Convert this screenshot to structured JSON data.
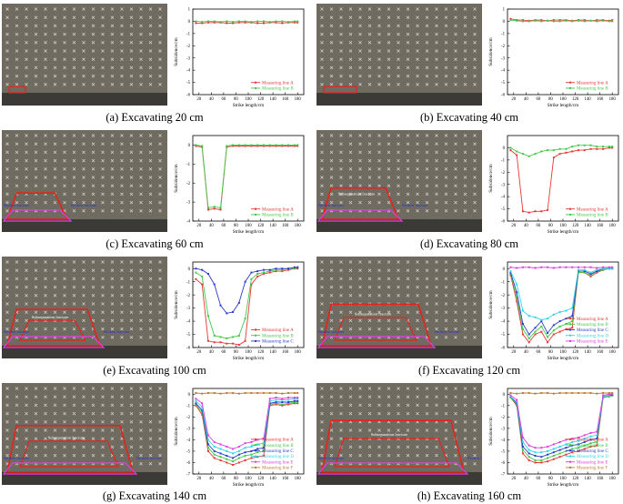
{
  "common": {
    "xlabel": "Strike length/cm",
    "ylabel": "Subsidence/cm",
    "x_ticks": [
      20,
      40,
      60,
      80,
      100,
      120,
      140,
      160,
      180
    ],
    "photo_label_broken": "Broken fracture",
    "photo_label_separation": "Subseparation fracture",
    "series_colors": {
      "Measuring line A": "#e53935",
      "Measuring line B": "#43c84a",
      "Measuring line C": "#2b3cc8",
      "Measuring line D": "#2fd6e6",
      "Measuring line E": "#e23ce0",
      "Measuring line F": "#c07a2e"
    }
  },
  "chart_data": [
    {
      "type": "line",
      "caption": "(a) Excavating 20 cm",
      "xlabel": "Strike length/cm",
      "ylabel": "Subsidence/cm",
      "ylim": [
        -6,
        1
      ],
      "y_ticks": [
        1,
        0,
        -1,
        -2,
        -3,
        -4,
        -5,
        -6
      ],
      "x": [
        15,
        25,
        35,
        45,
        55,
        65,
        75,
        85,
        95,
        105,
        115,
        125,
        135,
        145,
        155,
        165,
        175,
        180
      ],
      "series": [
        {
          "name": "Measuring line A",
          "values": [
            -0.15,
            -0.15,
            -0.1,
            -0.1,
            -0.1,
            -0.15,
            -0.15,
            -0.1,
            -0.1,
            -0.1,
            -0.15,
            -0.15,
            -0.1,
            -0.1,
            -0.15,
            -0.1,
            -0.1,
            -0.1
          ]
        },
        {
          "name": "Measuring line B",
          "values": [
            0,
            -0.05,
            0,
            0,
            -0.05,
            0,
            -0.05,
            0,
            0,
            -0.05,
            0,
            0,
            -0.05,
            0,
            0,
            -0.05,
            0,
            0
          ]
        }
      ]
    },
    {
      "type": "line",
      "caption": "(b) Excavating 40 cm",
      "xlabel": "Strike length/cm",
      "ylabel": "Subsidence/cm",
      "ylim": [
        -6,
        1
      ],
      "y_ticks": [
        1,
        0,
        -1,
        -2,
        -3,
        -4,
        -5,
        -6
      ],
      "x": [
        15,
        25,
        35,
        45,
        55,
        65,
        75,
        85,
        95,
        105,
        115,
        125,
        135,
        145,
        155,
        165,
        175,
        180
      ],
      "series": [
        {
          "name": "Measuring line A",
          "values": [
            0.2,
            0.1,
            0.1,
            0.05,
            0.1,
            0.1,
            0.05,
            0.1,
            0.1,
            0.1,
            0.05,
            0.1,
            0.1,
            0.05,
            0.1,
            0.1,
            0.05,
            0.1
          ]
        },
        {
          "name": "Measuring line B",
          "values": [
            0.1,
            0.05,
            0,
            0,
            0.05,
            0,
            0.05,
            0,
            0,
            0.05,
            0,
            0.05,
            0,
            0.05,
            0,
            0.05,
            0,
            0
          ]
        }
      ]
    },
    {
      "type": "line",
      "caption": "(c) Excavating 60 cm",
      "xlabel": "Strike length/cm",
      "ylabel": "Subsidence/cm",
      "ylim": [
        -4,
        0.5
      ],
      "y_ticks": [
        0,
        -1,
        -2,
        -3,
        -4
      ],
      "x": [
        15,
        25,
        35,
        45,
        55,
        65,
        75,
        85,
        95,
        105,
        115,
        125,
        135,
        145,
        155,
        165,
        175,
        180
      ],
      "series": [
        {
          "name": "Measuring line A",
          "values": [
            -0.05,
            -0.1,
            -3.4,
            -3.35,
            -3.4,
            -0.1,
            -0.05,
            -0.05,
            -0.05,
            -0.05,
            -0.05,
            -0.05,
            -0.05,
            -0.05,
            -0.05,
            -0.05,
            -0.05,
            -0.05
          ]
        },
        {
          "name": "Measuring line B",
          "values": [
            0,
            -0.05,
            -3.3,
            -3.25,
            -3.3,
            -0.05,
            0,
            0,
            0,
            0,
            0,
            0,
            0,
            0,
            0,
            0,
            0,
            0
          ]
        }
      ]
    },
    {
      "type": "line",
      "caption": "(d) Excavating 80 cm",
      "xlabel": "Strike length/cm",
      "ylabel": "Subsidence/cm",
      "ylim": [
        -6,
        1
      ],
      "y_ticks": [
        0,
        -1,
        -2,
        -3,
        -4,
        -5,
        -6
      ],
      "x": [
        15,
        25,
        35,
        45,
        55,
        65,
        75,
        85,
        95,
        105,
        115,
        125,
        135,
        145,
        155,
        165,
        175,
        180
      ],
      "series": [
        {
          "name": "Measuring line A",
          "values": [
            -0.2,
            -0.6,
            -5.2,
            -5.3,
            -5.2,
            -5.2,
            -5.1,
            -0.8,
            -0.5,
            -0.4,
            -0.3,
            -0.2,
            -0.2,
            -0.1,
            -0.1,
            -0.1,
            0,
            0
          ]
        },
        {
          "name": "Measuring line B",
          "values": [
            0,
            -0.3,
            -0.5,
            -0.7,
            -0.5,
            -0.3,
            -0.2,
            -0.2,
            -0.1,
            -0.1,
            0.1,
            0.2,
            0.2,
            0.2,
            0.1,
            0.1,
            0.1,
            0.1
          ]
        }
      ]
    },
    {
      "type": "line",
      "caption": "(e) Excavating 100 cm",
      "xlabel": "Strike length/cm",
      "ylabel": "Subsidence/cm",
      "ylim": [
        -6,
        0.5
      ],
      "y_ticks": [
        0,
        -1,
        -2,
        -3,
        -4,
        -5,
        -6
      ],
      "x": [
        15,
        25,
        35,
        45,
        55,
        65,
        75,
        85,
        95,
        105,
        115,
        125,
        135,
        145,
        155,
        165,
        175,
        180
      ],
      "series": [
        {
          "name": "Measuring line A",
          "values": [
            -0.8,
            -1.2,
            -5.5,
            -5.6,
            -5.6,
            -5.7,
            -5.7,
            -5.8,
            -5.5,
            -1.2,
            -0.6,
            -0.4,
            -0.3,
            -0.2,
            -0.2,
            -0.1,
            0,
            0
          ]
        },
        {
          "name": "Measuring line B",
          "values": [
            -0.3,
            -0.6,
            -3.6,
            -5.1,
            -5.2,
            -5.3,
            -5.2,
            -5.1,
            -3.8,
            -0.8,
            -0.4,
            -0.3,
            -0.2,
            -0.1,
            -0.1,
            0,
            0,
            0.1
          ]
        },
        {
          "name": "Measuring line C",
          "values": [
            0,
            -0.1,
            -0.4,
            -1.2,
            -2.8,
            -3.4,
            -3.3,
            -2.6,
            -1.0,
            -0.3,
            -0.2,
            -0.1,
            -0.1,
            0,
            0,
            0,
            0.1,
            0.1
          ]
        }
      ]
    },
    {
      "type": "line",
      "caption": "(f) Excavating 120 cm",
      "xlabel": "Strike length/cm",
      "ylabel": "Subsidence/cm",
      "ylim": [
        -6,
        0.5
      ],
      "y_ticks": [
        0,
        -1,
        -2,
        -3,
        -4,
        -5,
        -6
      ],
      "x": [
        15,
        25,
        35,
        45,
        55,
        65,
        75,
        85,
        95,
        105,
        115,
        125,
        135,
        145,
        155,
        165,
        175,
        180
      ],
      "series": [
        {
          "name": "Measuring line A",
          "values": [
            -0.5,
            -2.5,
            -5.0,
            -5.6,
            -5.0,
            -4.8,
            -5.6,
            -5.0,
            -4.8,
            -4.6,
            -4.5,
            -0.3,
            -0.3,
            -0.6,
            -0.3,
            -0.1,
            0,
            0
          ]
        },
        {
          "name": "Measuring line B",
          "values": [
            -0.4,
            -2.2,
            -4.6,
            -5.3,
            -4.8,
            -4.4,
            -5.2,
            -4.7,
            -4.4,
            -4.2,
            -4.0,
            -0.3,
            -0.3,
            -0.5,
            -0.2,
            -0.1,
            0,
            0
          ]
        },
        {
          "name": "Measuring line C",
          "values": [
            -0.3,
            -1.8,
            -4.2,
            -5.0,
            -4.5,
            -4.0,
            -4.9,
            -4.3,
            -4.0,
            -3.8,
            -3.6,
            -0.2,
            -0.2,
            -0.4,
            -0.2,
            0,
            0,
            0
          ]
        },
        {
          "name": "Measuring line D",
          "values": [
            -0.2,
            -1.2,
            -3.2,
            -3.6,
            -3.7,
            -3.9,
            -3.8,
            -3.5,
            -3.3,
            -3.2,
            -3.0,
            -0.1,
            -0.1,
            -0.3,
            -0.1,
            0,
            0,
            0
          ]
        },
        {
          "name": "Measuring line E",
          "values": [
            0.1,
            0.05,
            0.1,
            0.1,
            0.05,
            0.1,
            0.1,
            0.05,
            0.1,
            0.1,
            0.1,
            0.1,
            0.1,
            0.1,
            0.05,
            0.1,
            0.1,
            0.1
          ]
        }
      ]
    },
    {
      "type": "line",
      "caption": "(g) Excavating 140 cm",
      "xlabel": "Strike length/cm",
      "ylabel": "Subsidence/cm",
      "ylim": [
        -7,
        0.5
      ],
      "y_ticks": [
        0,
        -1,
        -2,
        -3,
        -4,
        -5,
        -6,
        -7
      ],
      "x": [
        15,
        25,
        35,
        45,
        55,
        65,
        75,
        85,
        95,
        105,
        115,
        125,
        135,
        145,
        155,
        165,
        175,
        180
      ],
      "series": [
        {
          "name": "Measuring line A",
          "values": [
            -1.0,
            -1.8,
            -5.0,
            -5.6,
            -5.8,
            -6.0,
            -6.2,
            -6.0,
            -5.8,
            -5.6,
            -5.5,
            -5.4,
            -1.0,
            -0.9,
            -1.0,
            -0.9,
            -0.8,
            -0.8
          ]
        },
        {
          "name": "Measuring line B",
          "values": [
            -0.9,
            -1.6,
            -4.7,
            -5.3,
            -5.5,
            -5.7,
            -5.9,
            -5.6,
            -5.4,
            -5.3,
            -5.1,
            -5.0,
            -0.9,
            -0.8,
            -0.9,
            -0.8,
            -0.7,
            -0.7
          ]
        },
        {
          "name": "Measuring line C",
          "values": [
            -0.8,
            -1.4,
            -4.4,
            -5.0,
            -5.2,
            -5.4,
            -5.6,
            -5.3,
            -5.1,
            -5.0,
            -4.8,
            -4.7,
            -0.8,
            -0.7,
            -0.7,
            -0.7,
            -0.6,
            -0.6
          ]
        },
        {
          "name": "Measuring line D",
          "values": [
            -0.6,
            -1.1,
            -4.0,
            -4.6,
            -4.8,
            -5.0,
            -5.2,
            -5.0,
            -4.7,
            -4.6,
            -4.4,
            -4.3,
            -0.6,
            -0.5,
            -0.5,
            -0.5,
            -0.4,
            -0.4
          ]
        },
        {
          "name": "Measuring line E",
          "values": [
            -0.4,
            -0.8,
            -3.6,
            -4.2,
            -4.4,
            -4.6,
            -4.8,
            -4.6,
            -4.3,
            -4.2,
            -4.0,
            -3.9,
            -0.4,
            -0.3,
            -0.4,
            -0.3,
            -0.3,
            -0.3
          ]
        },
        {
          "name": "Measuring line F",
          "values": [
            0.1,
            0.05,
            0.1,
            0.1,
            0.05,
            0.1,
            0.1,
            0.05,
            0.1,
            0.1,
            0.1,
            0.1,
            0.1,
            0.1,
            0.05,
            0.1,
            0.1,
            0.1
          ]
        }
      ]
    },
    {
      "type": "line",
      "caption": "(h) Excavating 160 cm",
      "xlabel": "Strike length/cm",
      "ylabel": "Subsidence/cm",
      "ylim": [
        -7,
        0.5
      ],
      "y_ticks": [
        0,
        -1,
        -2,
        -3,
        -4,
        -5,
        -6,
        -7
      ],
      "x": [
        15,
        25,
        35,
        45,
        55,
        65,
        75,
        85,
        95,
        105,
        115,
        125,
        135,
        145,
        155,
        165,
        175,
        180
      ],
      "series": [
        {
          "name": "Measuring line A",
          "values": [
            -0.3,
            -1.0,
            -5.2,
            -5.8,
            -6.0,
            -6.0,
            -5.9,
            -5.7,
            -5.5,
            -5.3,
            -5.1,
            -5.0,
            -4.8,
            -4.6,
            -4.5,
            -0.3,
            -0.2,
            -0.1
          ]
        },
        {
          "name": "Measuring line B",
          "values": [
            -0.3,
            -0.9,
            -4.9,
            -5.5,
            -5.8,
            -5.8,
            -5.6,
            -5.4,
            -5.2,
            -5.0,
            -4.8,
            -4.7,
            -4.5,
            -4.3,
            -4.2,
            -0.3,
            -0.2,
            -0.1
          ]
        },
        {
          "name": "Measuring line C",
          "values": [
            -0.2,
            -0.8,
            -4.6,
            -5.2,
            -5.4,
            -5.5,
            -5.3,
            -5.1,
            -4.9,
            -4.7,
            -4.5,
            -4.4,
            -4.2,
            -4.0,
            -3.9,
            -0.2,
            -0.1,
            -0.1
          ]
        },
        {
          "name": "Measuring line D",
          "values": [
            -0.2,
            -0.7,
            -4.2,
            -4.9,
            -5.1,
            -5.1,
            -5.0,
            -4.8,
            -4.6,
            -4.4,
            -4.2,
            -4.1,
            -3.9,
            -3.7,
            -3.6,
            -0.2,
            -0.1,
            0
          ]
        },
        {
          "name": "Measuring line E",
          "values": [
            -0.1,
            -0.5,
            -3.8,
            -4.5,
            -4.7,
            -4.7,
            -4.6,
            -4.4,
            -4.2,
            -4.0,
            -3.9,
            -3.8,
            -3.6,
            -3.4,
            -3.3,
            -0.1,
            0,
            0
          ]
        },
        {
          "name": "Measuring line F",
          "values": [
            0.1,
            0.05,
            0.1,
            0.1,
            0.05,
            0.1,
            0.1,
            0.05,
            0.1,
            0.1,
            0.1,
            0.1,
            0.1,
            0.1,
            0.05,
            0.1,
            0.1,
            0.1
          ]
        }
      ]
    }
  ]
}
